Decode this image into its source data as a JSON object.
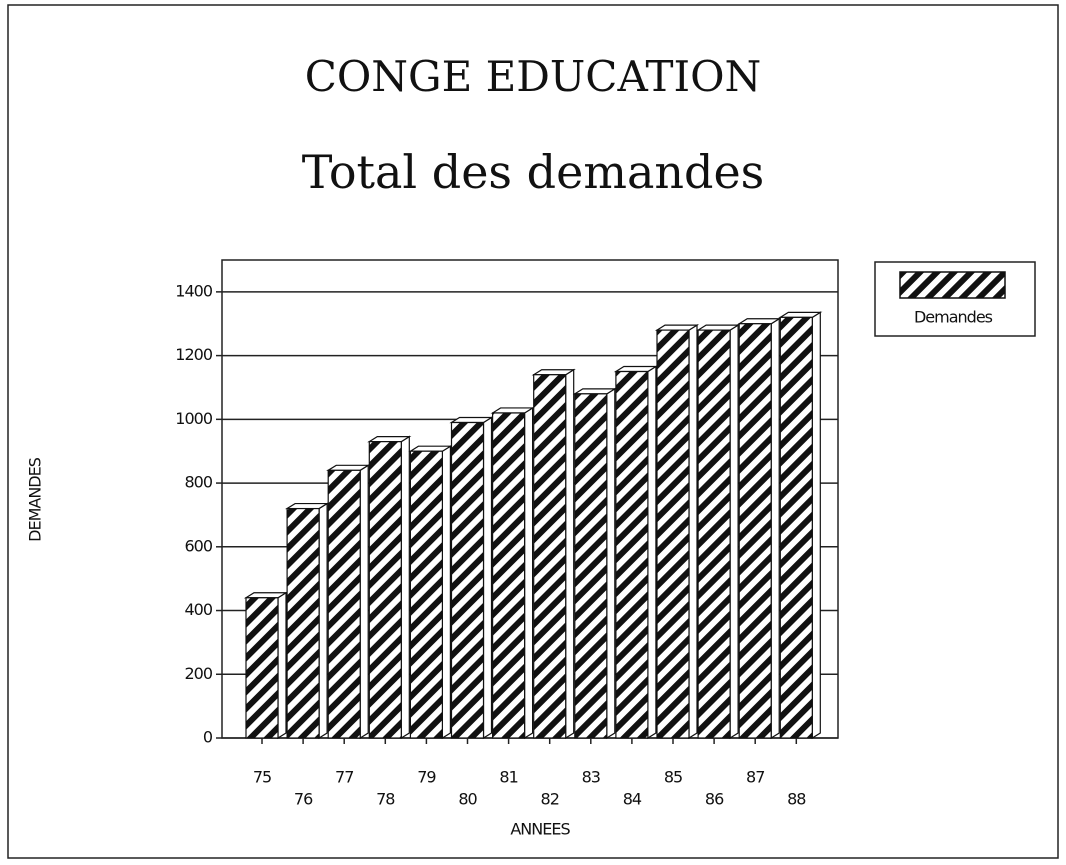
{
  "chart_data": {
    "type": "bar",
    "title": "CONGE EDUCATION",
    "subtitle": "Total des demandes",
    "x_label": "ANNEES",
    "y_label": "DEMANDES",
    "categories": [
      "75",
      "76",
      "77",
      "78",
      "79",
      "80",
      "81",
      "82",
      "83",
      "84",
      "85",
      "86",
      "87",
      "88"
    ],
    "series": [
      {
        "name": "Demandes",
        "color": "#111111",
        "values": [
          440,
          720,
          840,
          930,
          900,
          990,
          1020,
          1140,
          1080,
          1150,
          1280,
          1280,
          1300,
          1320
        ]
      }
    ],
    "ylim": [
      0,
      1500
    ],
    "yticks": [
      0,
      200,
      400,
      600,
      800,
      1000,
      1200,
      1400
    ],
    "grid": true,
    "legend": "upper right"
  }
}
